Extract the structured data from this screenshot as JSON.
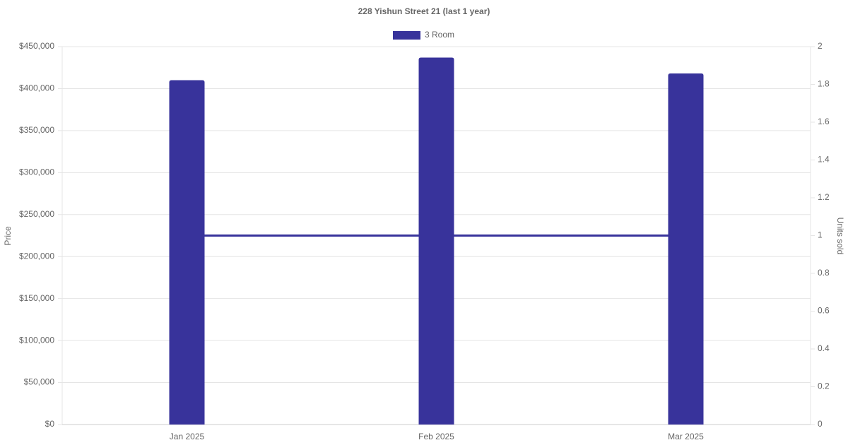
{
  "chart_data": {
    "type": "bar",
    "title": "228 Yishun Street 21 (last 1 year)",
    "categories": [
      "Jan 2025",
      "Feb 2025",
      "Mar 2025"
    ],
    "series": [
      {
        "name": "3 Room",
        "type": "bar",
        "color": "#38339b",
        "values": [
          410000,
          437000,
          418000
        ]
      },
      {
        "type": "line",
        "axis": "y2",
        "color": "#38339b",
        "values": [
          1,
          1,
          1
        ]
      }
    ],
    "y_label": "Price",
    "y2_label": "Units sold",
    "ylim": [
      0,
      450000
    ],
    "yticks": [
      {
        "value": 0,
        "label": "$0"
      },
      {
        "value": 50000,
        "label": "$50,000"
      },
      {
        "value": 100000,
        "label": "$100,000"
      },
      {
        "value": 150000,
        "label": "$150,000"
      },
      {
        "value": 200000,
        "label": "$200,000"
      },
      {
        "value": 250000,
        "label": "$250,000"
      },
      {
        "value": 300000,
        "label": "$300,000"
      },
      {
        "value": 350000,
        "label": "$350,000"
      },
      {
        "value": 400000,
        "label": "$400,000"
      },
      {
        "value": 450000,
        "label": "$450,000"
      }
    ],
    "y2lim": [
      0,
      2
    ],
    "y2ticks": [
      0,
      0.2,
      0.4,
      0.6,
      0.8,
      1,
      1.2,
      1.4,
      1.6,
      1.8,
      2
    ],
    "grid": true,
    "legend": "top"
  }
}
